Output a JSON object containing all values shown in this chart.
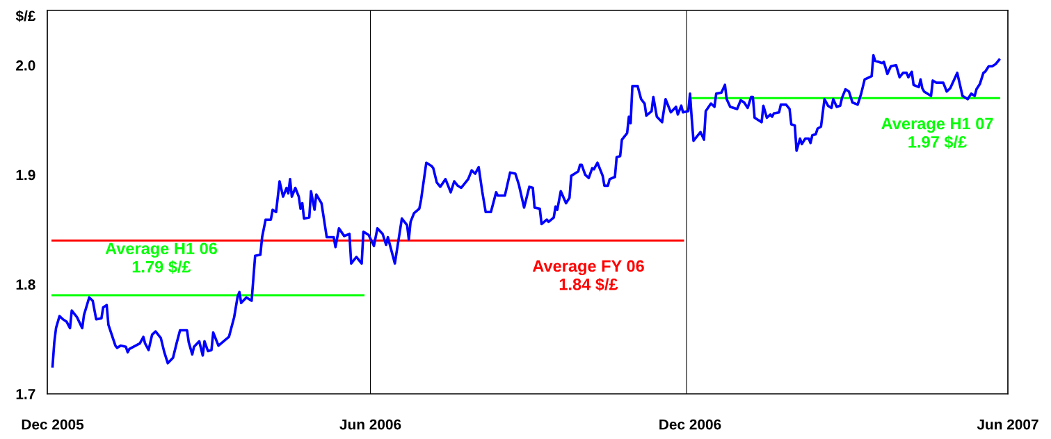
{
  "chart_data": {
    "type": "line",
    "ylabel": "$/£",
    "ylim": [
      1.7,
      2.05
    ],
    "yticks": [
      1.7,
      1.8,
      1.9,
      {
        "value": 2.0,
        "label": "2.0"
      }
    ],
    "xlim": [
      "2005-12-27",
      "2007-06-30"
    ],
    "xticks": [
      {
        "value": "2005-12-30",
        "label": "Dec 2005"
      },
      {
        "value": "2006-06-30",
        "label": "Jun 2006"
      },
      {
        "value": "2006-12-30",
        "label": "Dec 2006"
      },
      {
        "value": "2007-06-30",
        "label": "Jun 2007"
      }
    ],
    "grid": false,
    "legend": false,
    "marker": "none",
    "line_style": "solid",
    "ref_lines": [
      {
        "axis": "x",
        "value": "2006-06-30",
        "color": "#000000"
      },
      {
        "axis": "x",
        "value": "2006-12-28",
        "color": "#000000"
      }
    ],
    "annotations": [
      "Average H1 06\n1.79 $/£",
      "Average FY 06\n1.84 $/£",
      "Average H1 07\n1.97 $/£"
    ],
    "series": [
      {
        "color": "#0000ff",
        "x": [
          "2005-12-30",
          "2005-12-31",
          "2006-01-01",
          "2006-01-03",
          "2006-01-05",
          "2006-01-07",
          "2006-01-09",
          "2006-01-10",
          "2006-01-13",
          "2006-01-16",
          "2006-01-17",
          "2006-01-20",
          "2006-01-22",
          "2006-01-24",
          "2006-01-27",
          "2006-01-28",
          "2006-01-30",
          "2006-01-31",
          "2006-02-04",
          "2006-02-05",
          "2006-02-07",
          "2006-02-10",
          "2006-02-11",
          "2006-02-12",
          "2006-02-18",
          "2006-02-20",
          "2006-02-21",
          "2006-02-23",
          "2006-02-25",
          "2006-02-27",
          "2006-03-02",
          "2006-03-04",
          "2006-03-06",
          "2006-03-09",
          "2006-03-11",
          "2006-03-13",
          "2006-03-17",
          "2006-03-18",
          "2006-03-20",
          "2006-03-21",
          "2006-03-24",
          "2006-03-26",
          "2006-03-27",
          "2006-03-29",
          "2006-03-31",
          "2006-04-01",
          "2006-04-04",
          "2006-04-10",
          "2006-04-13",
          "2006-04-15",
          "2006-04-16",
          "2006-04-17",
          "2006-04-20",
          "2006-04-23",
          "2006-04-25",
          "2006-04-28",
          "2006-04-29",
          "2006-05-01",
          "2006-05-04",
          "2006-05-05",
          "2006-05-07",
          "2006-05-09",
          "2006-05-11",
          "2006-05-13",
          "2006-05-14",
          "2006-05-15",
          "2006-05-16",
          "2006-05-18",
          "2006-05-20",
          "2006-05-21",
          "2006-05-22",
          "2006-05-23",
          "2006-05-26",
          "2006-05-27",
          "2006-05-29",
          "2006-05-30",
          "2006-06-02",
          "2006-06-05",
          "2006-06-09",
          "2006-06-10",
          "2006-06-12",
          "2006-06-15",
          "2006-06-18",
          "2006-06-19",
          "2006-06-22",
          "2006-06-25",
          "2006-06-26",
          "2006-06-29",
          "2006-07-02",
          "2006-07-04",
          "2006-07-07",
          "2006-07-09",
          "2006-07-10",
          "2006-07-14",
          "2006-07-18",
          "2006-07-21",
          "2006-07-22",
          "2006-07-23",
          "2006-07-25",
          "2006-07-28",
          "2006-07-29",
          "2006-08-01",
          "2006-08-04",
          "2006-08-05",
          "2006-08-07",
          "2006-08-09",
          "2006-08-12",
          "2006-08-15",
          "2006-08-17",
          "2006-08-19",
          "2006-08-21",
          "2006-08-25",
          "2006-08-27",
          "2006-08-29",
          "2006-08-31",
          "2006-09-02",
          "2006-09-04",
          "2006-09-07",
          "2006-09-10",
          "2006-09-11",
          "2006-09-15",
          "2006-09-18",
          "2006-09-21",
          "2006-09-23",
          "2006-09-26",
          "2006-09-29",
          "2006-10-01",
          "2006-10-02",
          "2006-10-05",
          "2006-10-06",
          "2006-10-09",
          "2006-10-10",
          "2006-10-13",
          "2006-10-14",
          "2006-10-15",
          "2006-10-17",
          "2006-10-20",
          "2006-10-22",
          "2006-10-23",
          "2006-10-27",
          "2006-10-28",
          "2006-10-29",
          "2006-10-31",
          "2006-11-02",
          "2006-11-04",
          "2006-11-05",
          "2006-11-07",
          "2006-11-10",
          "2006-11-11",
          "2006-11-13",
          "2006-11-14",
          "2006-11-17",
          "2006-11-18",
          "2006-11-20",
          "2006-11-21",
          "2006-11-24",
          "2006-11-25",
          "2006-11-26",
          "2006-11-27",
          "2006-11-30",
          "2006-12-02",
          "2006-12-04",
          "2006-12-05",
          "2006-12-08",
          "2006-12-09",
          "2006-12-11",
          "2006-12-14",
          "2006-12-16",
          "2006-12-19",
          "2006-12-22",
          "2006-12-23",
          "2006-12-25",
          "2006-12-26",
          "2006-12-29",
          "2006-12-30",
          "2006-12-31",
          "2007-01-01",
          "2007-01-05",
          "2007-01-07",
          "2007-01-08",
          "2007-01-11",
          "2007-01-13",
          "2007-01-14",
          "2007-01-17",
          "2007-01-19",
          "2007-01-20",
          "2007-01-22",
          "2007-01-26",
          "2007-01-28",
          "2007-01-30",
          "2007-02-01",
          "2007-02-03",
          "2007-02-04",
          "2007-02-05",
          "2007-02-09",
          "2007-02-10",
          "2007-02-12",
          "2007-02-14",
          "2007-02-15",
          "2007-02-16",
          "2007-02-19",
          "2007-02-20",
          "2007-02-23",
          "2007-02-25",
          "2007-02-26",
          "2007-02-28",
          "2007-03-01",
          "2007-03-03",
          "2007-03-04",
          "2007-03-06",
          "2007-03-08",
          "2007-03-09",
          "2007-03-10",
          "2007-03-12",
          "2007-03-13",
          "2007-03-15",
          "2007-03-17",
          "2007-03-19",
          "2007-03-21",
          "2007-03-22",
          "2007-03-24",
          "2007-03-26",
          "2007-03-27",
          "2007-03-29",
          "2007-03-31",
          "2007-04-02",
          "2007-04-05",
          "2007-04-07",
          "2007-04-09",
          "2007-04-13",
          "2007-04-14",
          "2007-04-15",
          "2007-04-19",
          "2007-04-20",
          "2007-04-22",
          "2007-04-24",
          "2007-04-27",
          "2007-04-29",
          "2007-05-01",
          "2007-05-03",
          "2007-05-04",
          "2007-05-06",
          "2007-05-07",
          "2007-05-10",
          "2007-05-11",
          "2007-05-12",
          "2007-05-13",
          "2007-05-17",
          "2007-05-18",
          "2007-05-20",
          "2007-05-24",
          "2007-05-26",
          "2007-05-28",
          "2007-06-01",
          "2007-06-04",
          "2007-06-07",
          "2007-06-09",
          "2007-06-11",
          "2007-06-12",
          "2007-06-14",
          "2007-06-16",
          "2007-06-17",
          "2007-06-19",
          "2007-06-21",
          "2007-06-23",
          "2007-06-25"
        ],
        "values": [
          1.725,
          1.747,
          1.76,
          1.771,
          1.768,
          1.766,
          1.76,
          1.776,
          1.77,
          1.76,
          1.772,
          1.788,
          1.785,
          1.768,
          1.769,
          1.779,
          1.781,
          1.763,
          1.744,
          1.742,
          1.744,
          1.743,
          1.738,
          1.741,
          1.746,
          1.752,
          1.746,
          1.74,
          1.754,
          1.757,
          1.751,
          1.738,
          1.728,
          1.733,
          1.746,
          1.758,
          1.758,
          1.747,
          1.736,
          1.743,
          1.748,
          1.735,
          1.748,
          1.739,
          1.74,
          1.756,
          1.744,
          1.752,
          1.77,
          1.789,
          1.793,
          1.783,
          1.788,
          1.785,
          1.826,
          1.827,
          1.843,
          1.859,
          1.859,
          1.868,
          1.866,
          1.894,
          1.88,
          1.888,
          1.883,
          1.896,
          1.88,
          1.888,
          1.88,
          1.869,
          1.874,
          1.86,
          1.861,
          1.885,
          1.868,
          1.882,
          1.874,
          1.843,
          1.843,
          1.834,
          1.851,
          1.844,
          1.846,
          1.819,
          1.825,
          1.819,
          1.848,
          1.845,
          1.835,
          1.851,
          1.846,
          1.836,
          1.843,
          1.819,
          1.86,
          1.854,
          1.841,
          1.857,
          1.865,
          1.869,
          1.877,
          1.911,
          1.908,
          1.906,
          1.893,
          1.889,
          1.896,
          1.884,
          1.894,
          1.89,
          1.888,
          1.896,
          1.904,
          1.901,
          1.907,
          1.885,
          1.866,
          1.866,
          1.884,
          1.881,
          1.881,
          1.902,
          1.901,
          1.891,
          1.87,
          1.889,
          1.888,
          1.87,
          1.869,
          1.855,
          1.859,
          1.857,
          1.861,
          1.871,
          1.868,
          1.885,
          1.874,
          1.879,
          1.899,
          1.903,
          1.909,
          1.909,
          1.9,
          1.897,
          1.906,
          1.905,
          1.911,
          1.899,
          1.89,
          1.89,
          1.896,
          1.898,
          1.916,
          1.917,
          1.932,
          1.938,
          1.953,
          1.947,
          1.981,
          1.981,
          1.969,
          1.965,
          1.954,
          1.958,
          1.971,
          1.953,
          1.948,
          1.969,
          1.957,
          1.962,
          1.955,
          1.963,
          1.957,
          1.958,
          1.974,
          1.951,
          1.931,
          1.939,
          1.932,
          1.958,
          1.965,
          1.962,
          1.974,
          1.975,
          1.982,
          1.969,
          1.962,
          1.96,
          1.968,
          1.966,
          1.961,
          1.971,
          1.971,
          1.952,
          1.948,
          1.963,
          1.952,
          1.955,
          1.953,
          1.956,
          1.957,
          1.964,
          1.964,
          1.96,
          1.946,
          1.945,
          1.922,
          1.933,
          1.928,
          1.933,
          1.933,
          1.929,
          1.936,
          1.937,
          1.942,
          1.944,
          1.969,
          1.963,
          1.961,
          1.969,
          1.962,
          1.963,
          1.97,
          1.978,
          1.976,
          1.966,
          1.964,
          1.974,
          1.987,
          1.99,
          2.009,
          2.004,
          2.002,
          2.003,
          1.992,
          1.999,
          2.0,
          1.989,
          1.993,
          1.993,
          1.989,
          1.994,
          1.982,
          1.98,
          1.987,
          1.979,
          1.976,
          1.972,
          1.986,
          1.984,
          1.984,
          1.976,
          1.979,
          1.993,
          1.972,
          1.969,
          1.974,
          1.972,
          1.978,
          1.983,
          1.993,
          1.994,
          1.999,
          1.999,
          2.001,
          2.005
        ]
      },
      {
        "color": "#00ff00",
        "x": [
          "2005-12-30",
          "2006-06-26"
        ],
        "values": [
          1.79,
          1.79
        ]
      },
      {
        "color": "#ff0000",
        "x": [
          "2005-12-30",
          "2006-12-26"
        ],
        "values": [
          1.84,
          1.84
        ]
      },
      {
        "color": "#00ff00",
        "x": [
          "2006-12-30",
          "2007-06-25"
        ],
        "values": [
          1.97,
          1.97
        ]
      }
    ]
  }
}
